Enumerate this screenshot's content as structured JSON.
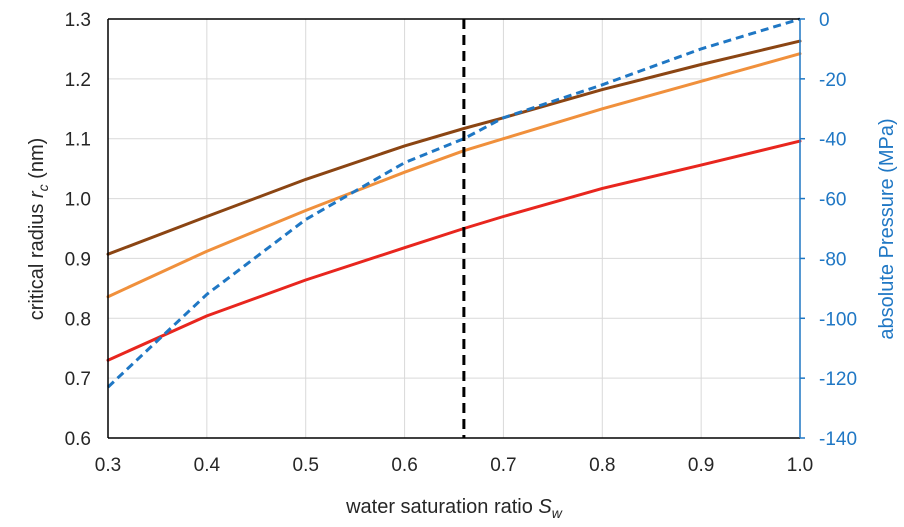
{
  "chart_data": {
    "type": "line",
    "title": "",
    "xlabel": {
      "text": "water saturation ratio ",
      "sym": "S",
      "sub": "w"
    },
    "ylabel_left": {
      "text": "critical radius ",
      "sym": "r",
      "sub": "c",
      "unit": " (nm)"
    },
    "ylabel_right": "absolute Pressure (MPa)",
    "xlim": [
      0.3,
      1.0
    ],
    "ylim_left": [
      0.6,
      1.3
    ],
    "ylim_right": [
      -140,
      0
    ],
    "x_ticks": [
      "0.3",
      "0.4",
      "0.5",
      "0.6",
      "0.7",
      "0.8",
      "0.9",
      "1.0"
    ],
    "y_ticks_left": [
      "0.6",
      "0.7",
      "0.8",
      "0.9",
      "1.0",
      "1.1",
      "1.2",
      "1.3"
    ],
    "y_ticks_right": [
      "-140",
      "-120",
      "-100",
      "-80",
      "-60",
      "-40",
      "-20",
      "0"
    ],
    "grid": true,
    "x": [
      0.3,
      0.4,
      0.5,
      0.6,
      0.66,
      0.7,
      0.8,
      0.9,
      1.0
    ],
    "series": [
      {
        "axis": "left",
        "color": "#8B4513",
        "style": "solid",
        "values": [
          0.907,
          0.97,
          1.032,
          1.088,
          1.117,
          1.135,
          1.182,
          1.224,
          1.263
        ]
      },
      {
        "axis": "left",
        "color": "#F0903C",
        "style": "solid",
        "values": [
          0.836,
          0.912,
          0.98,
          1.044,
          1.08,
          1.1,
          1.15,
          1.196,
          1.242
        ]
      },
      {
        "axis": "left",
        "color": "#E8261E",
        "style": "solid",
        "values": [
          0.73,
          0.804,
          0.864,
          0.918,
          0.95,
          0.97,
          1.017,
          1.056,
          1.096
        ]
      },
      {
        "axis": "right",
        "color": "#1F77C4",
        "style": "dashed",
        "values": [
          -123,
          -92,
          -67,
          -48,
          -40,
          -33,
          -22,
          -10,
          0
        ]
      }
    ],
    "reference_line": {
      "x": 0.66,
      "color": "#000000",
      "style": "dashed"
    },
    "colors": {
      "right_axis": "#1F77C4",
      "axis_frame": "#000000",
      "grid": "#d9d9d9"
    }
  }
}
